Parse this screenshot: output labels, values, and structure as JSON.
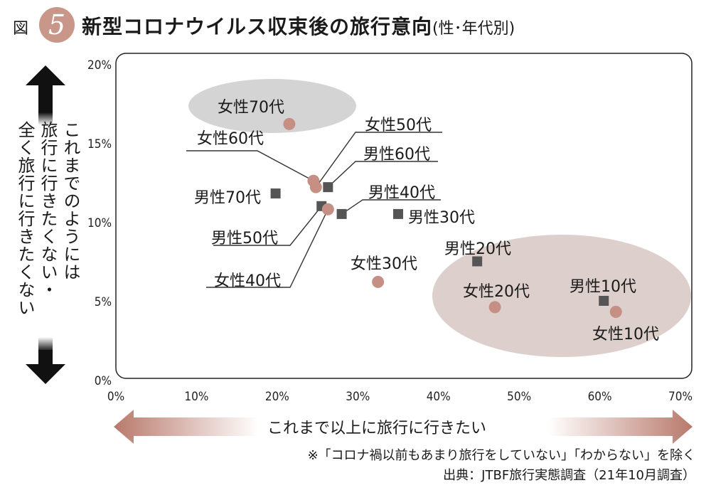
{
  "figure": {
    "label": "図",
    "number": "5",
    "title": "新型コロナウイルス収束後の旅行意向",
    "subtitle": "(性･年代別)"
  },
  "y_axis_label_lines": [
    "これまでのようには",
    "旅行に行きたくない・",
    "全く旅行に行きたくない"
  ],
  "x_axis_arrow_label": "これまで以上に旅行に行きたい",
  "note": "※「コロナ禍以前もあまり旅行をしていない」「わからない」を除く",
  "source": "出典：JTBF旅行実態調査（21年10月調査）",
  "colors": {
    "male": "#555555",
    "female": "#c58f84",
    "ellipse_gray": "#d4d4d4",
    "ellipse_pink": "#ddd0cc"
  },
  "chart_data": {
    "type": "scatter",
    "x_ticks": [
      "0%",
      "10%",
      "20%",
      "30%",
      "40%",
      "50%",
      "60%",
      "70%"
    ],
    "y_ticks": [
      "0%",
      "5%",
      "10%",
      "15%",
      "20%"
    ],
    "xlim": [
      0,
      70
    ],
    "ylim": [
      0,
      20
    ],
    "grid": false,
    "series": [
      {
        "name": "男性",
        "marker": "square",
        "points": [
          {
            "label": "男性10代",
            "x": 60.5,
            "y": 5.0
          },
          {
            "label": "男性20代",
            "x": 44.8,
            "y": 7.5
          },
          {
            "label": "男性30代",
            "x": 35.0,
            "y": 10.5
          },
          {
            "label": "男性40代",
            "x": 28.0,
            "y": 10.5
          },
          {
            "label": "男性50代",
            "x": 25.5,
            "y": 11.0
          },
          {
            "label": "男性60代",
            "x": 26.3,
            "y": 12.2
          },
          {
            "label": "男性70代",
            "x": 19.8,
            "y": 11.8
          }
        ]
      },
      {
        "name": "女性",
        "marker": "circle",
        "points": [
          {
            "label": "女性10代",
            "x": 62.0,
            "y": 4.3
          },
          {
            "label": "女性20代",
            "x": 47.0,
            "y": 4.6
          },
          {
            "label": "女性30代",
            "x": 32.5,
            "y": 6.2
          },
          {
            "label": "女性40代",
            "x": 26.3,
            "y": 10.8
          },
          {
            "label": "女性50代",
            "x": 24.8,
            "y": 12.2
          },
          {
            "label": "女性60代",
            "x": 24.5,
            "y": 12.6
          },
          {
            "label": "女性70代",
            "x": 21.5,
            "y": 16.2
          }
        ]
      }
    ]
  }
}
